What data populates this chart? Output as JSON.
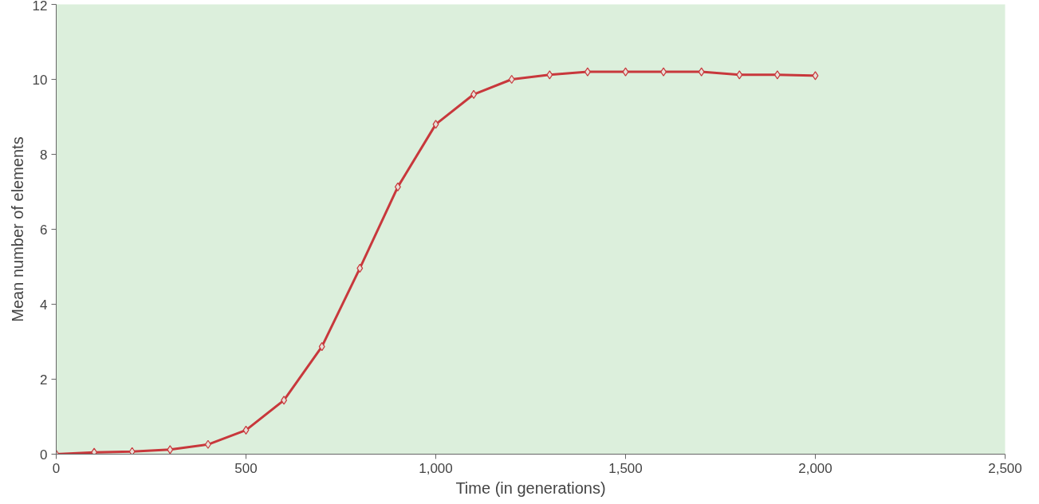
{
  "chart_data": {
    "type": "line",
    "xlabel": "Time (in generations)",
    "ylabel": "Mean number of elements",
    "x": [
      0,
      100,
      200,
      300,
      400,
      500,
      600,
      700,
      800,
      900,
      1000,
      1100,
      1200,
      1300,
      1400,
      1500,
      1600,
      1700,
      1800,
      1900,
      2000
    ],
    "series": [
      {
        "color": "#c8383c",
        "values": [
          0,
          0.05,
          0.07,
          0.12,
          0.26,
          0.64,
          1.44,
          2.87,
          4.96,
          7.13,
          8.8,
          9.6,
          10.0,
          10.12,
          10.2,
          10.2,
          10.2,
          10.2,
          10.12,
          10.12,
          10.1
        ]
      }
    ],
    "xlim": [
      0,
      2500
    ],
    "ylim": [
      0,
      12
    ],
    "xticks": [
      0,
      500,
      {
        "value": 1000,
        "label": "1,000"
      },
      {
        "value": 1500,
        "label": "1,500"
      },
      {
        "value": 2000,
        "label": "2,000"
      },
      {
        "value": 2500,
        "label": "2,500"
      }
    ],
    "yticks": [
      0,
      2,
      4,
      6,
      8,
      10,
      12
    ],
    "grid": false,
    "marker": "diamond",
    "line_style": "solid"
  }
}
